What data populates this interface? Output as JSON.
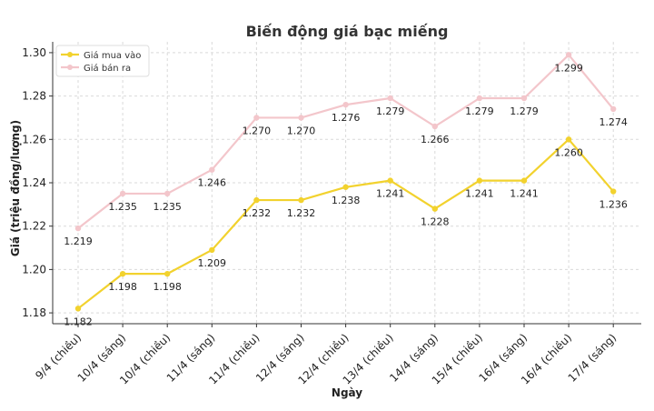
{
  "chart_data": {
    "type": "line",
    "title": "Biến động giá bạc miếng",
    "xlabel": "Ngày",
    "ylabel": "Giá (triệu đồng/lượng)",
    "categories": [
      "9/4 (chiều)",
      "10/4 (sáng)",
      "10/4 (chiều)",
      "11/4 (sáng)",
      "11/4 (chiều)",
      "12/4 (sáng)",
      "12/4 (chiều)",
      "13/4 (chiều)",
      "14/4 (sáng)",
      "15/4 (chiều)",
      "16/4 (sáng)",
      "16/4 (chiều)",
      "17/4 (sáng)"
    ],
    "ylim": [
      1.175,
      1.305
    ],
    "yticks": [
      1.18,
      1.2,
      1.22,
      1.24,
      1.26,
      1.28,
      1.3
    ],
    "grid": true,
    "legend_position": "top-left",
    "series": [
      {
        "name": "Giá mua vào",
        "color": "#f2d22e",
        "values": [
          1.182,
          1.198,
          1.198,
          1.209,
          1.232,
          1.232,
          1.238,
          1.241,
          1.228,
          1.241,
          1.241,
          1.26,
          1.236
        ],
        "labels": [
          "1.182",
          "1.198",
          "1.198",
          "1.209",
          "1.232",
          "1.232",
          "1.238",
          "1.241",
          "1.228",
          "1.241",
          "1.241",
          "1.260",
          "1.236"
        ]
      },
      {
        "name": "Giá bán ra",
        "color": "#f3c6cb",
        "values": [
          1.219,
          1.235,
          1.235,
          1.246,
          1.27,
          1.27,
          1.276,
          1.279,
          1.266,
          1.279,
          1.279,
          1.299,
          1.274
        ],
        "labels": [
          "1.219",
          "1.235",
          "1.235",
          "1.246",
          "1.270",
          "1.270",
          "1.276",
          "1.279",
          "1.266",
          "1.279",
          "1.279",
          "1.299",
          "1.274"
        ]
      }
    ]
  }
}
